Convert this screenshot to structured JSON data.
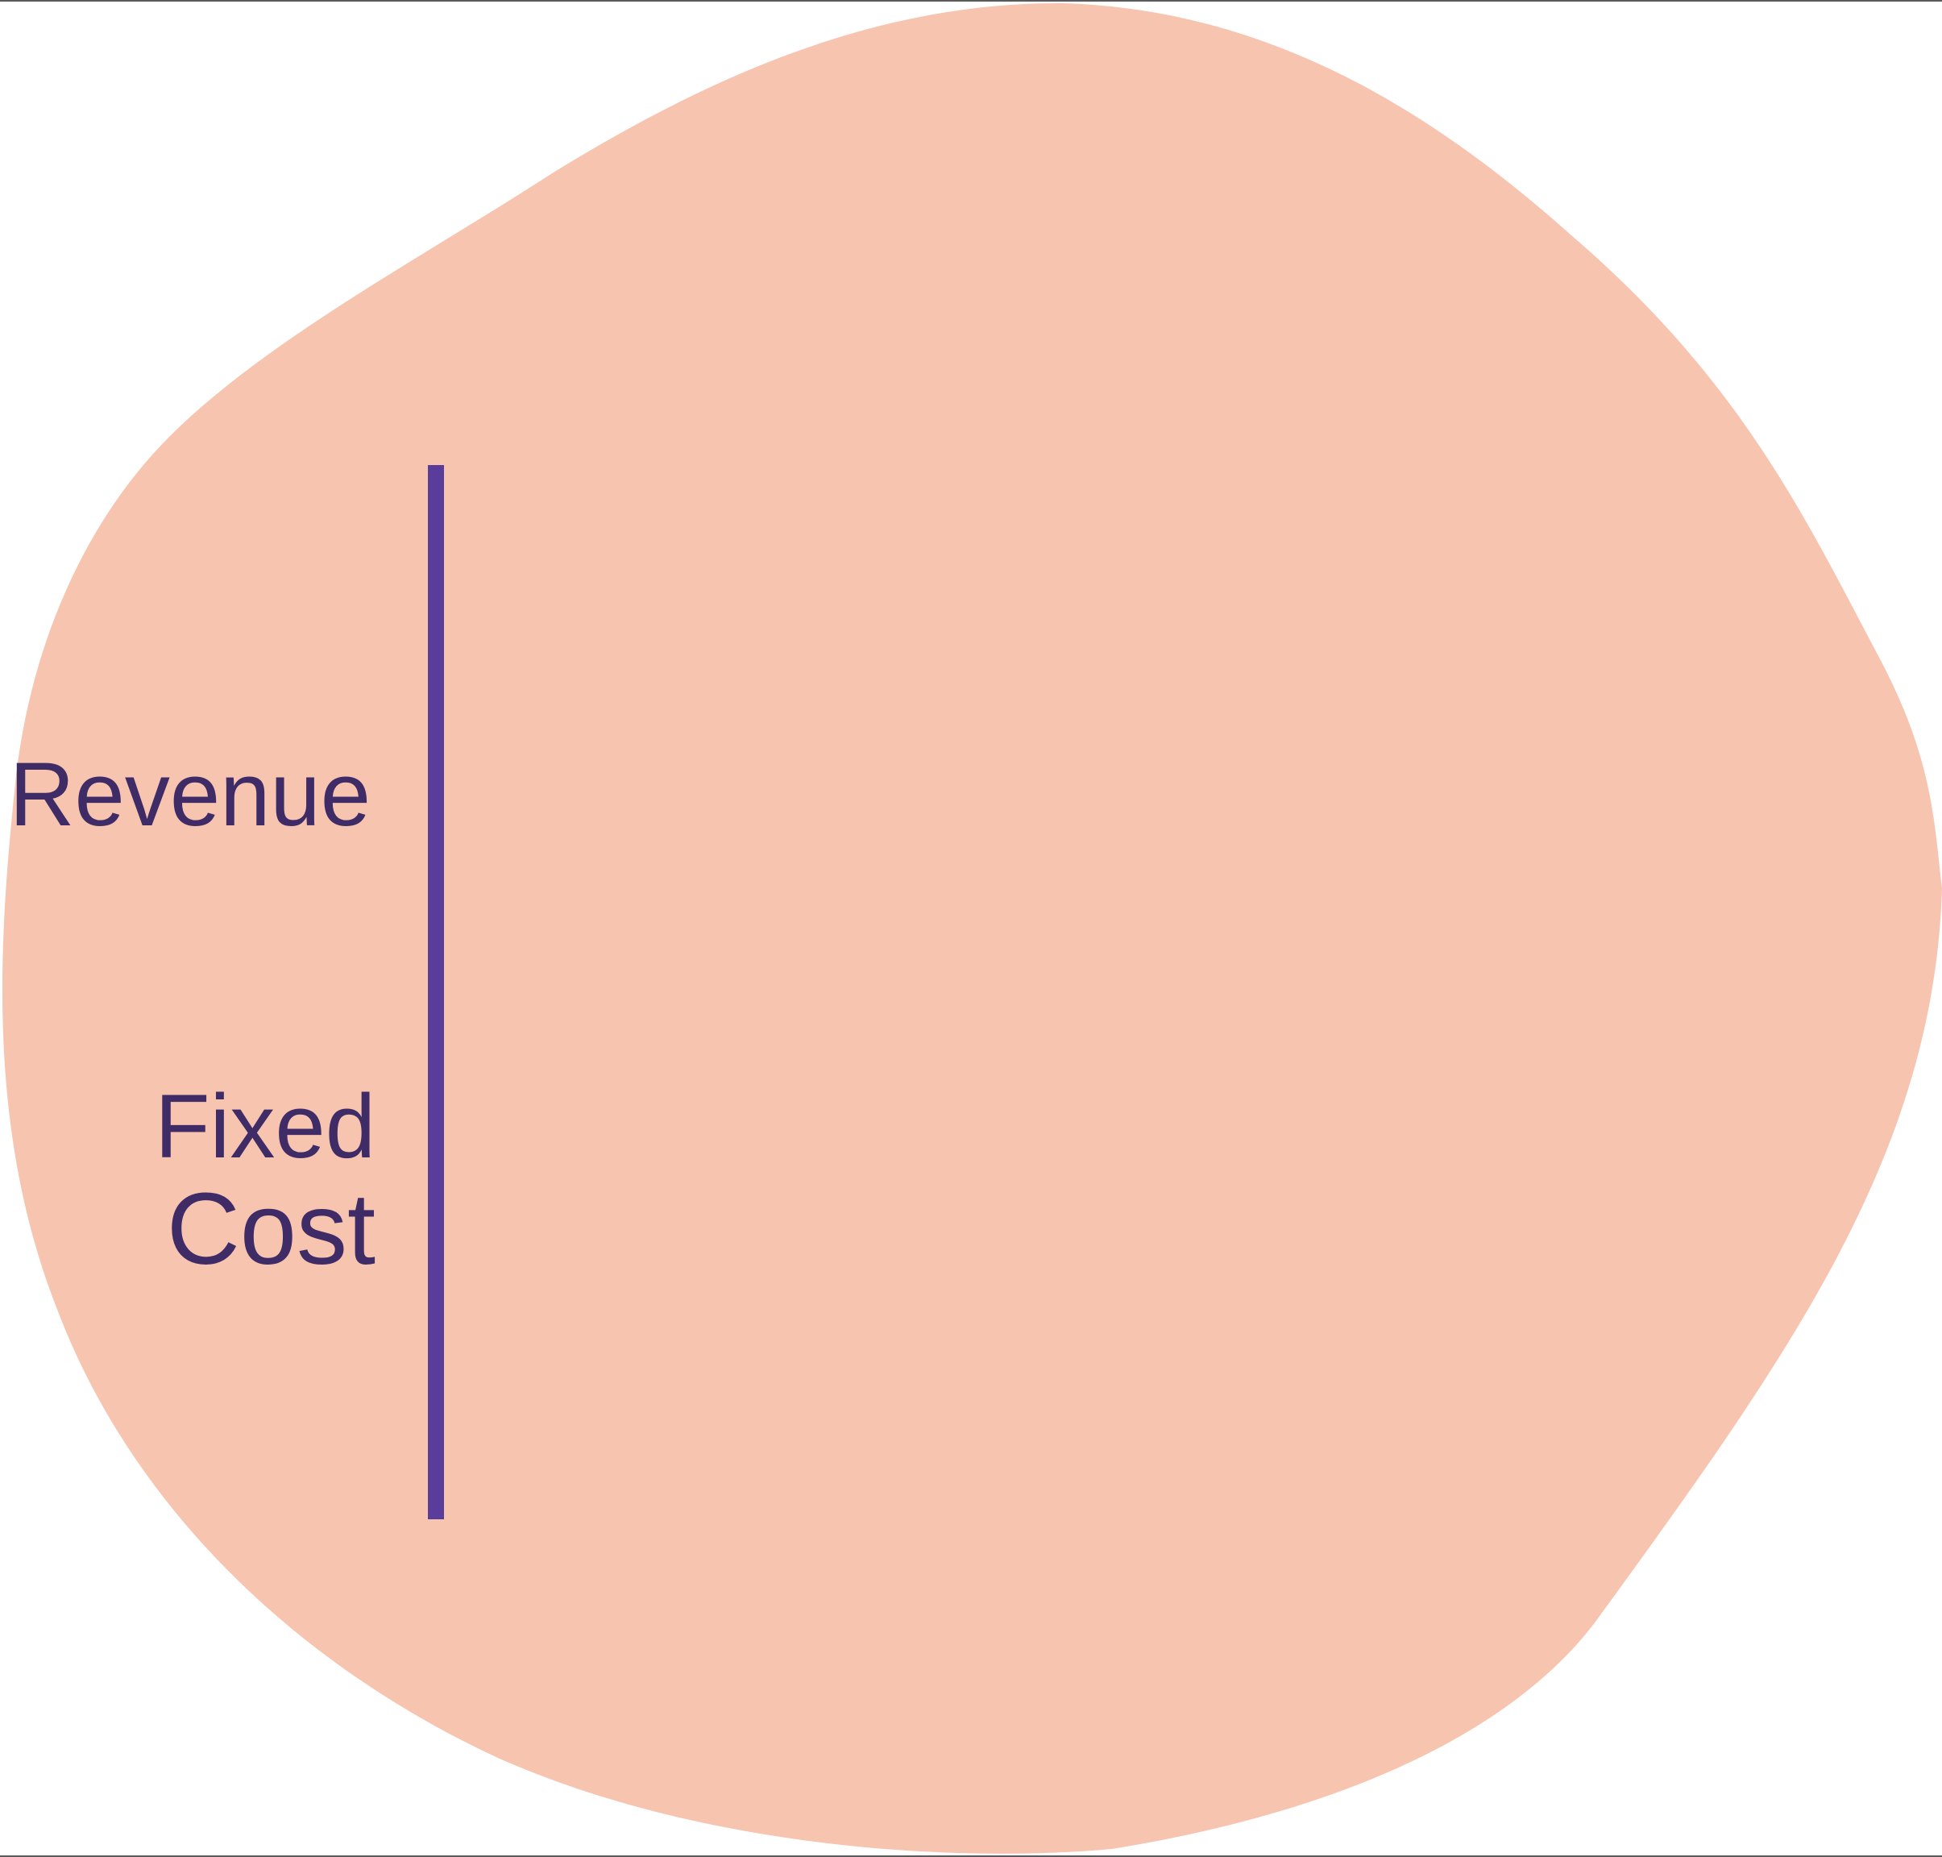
{
  "diagram": {
    "labels": {
      "revenue": "Revenue",
      "fixed": "Fixed",
      "cost": "Cost"
    },
    "colors": {
      "blob_fill": "#f7c4b0",
      "line": "#5a3d9a",
      "text": "#3f2b66",
      "background": "#ffffff"
    }
  }
}
